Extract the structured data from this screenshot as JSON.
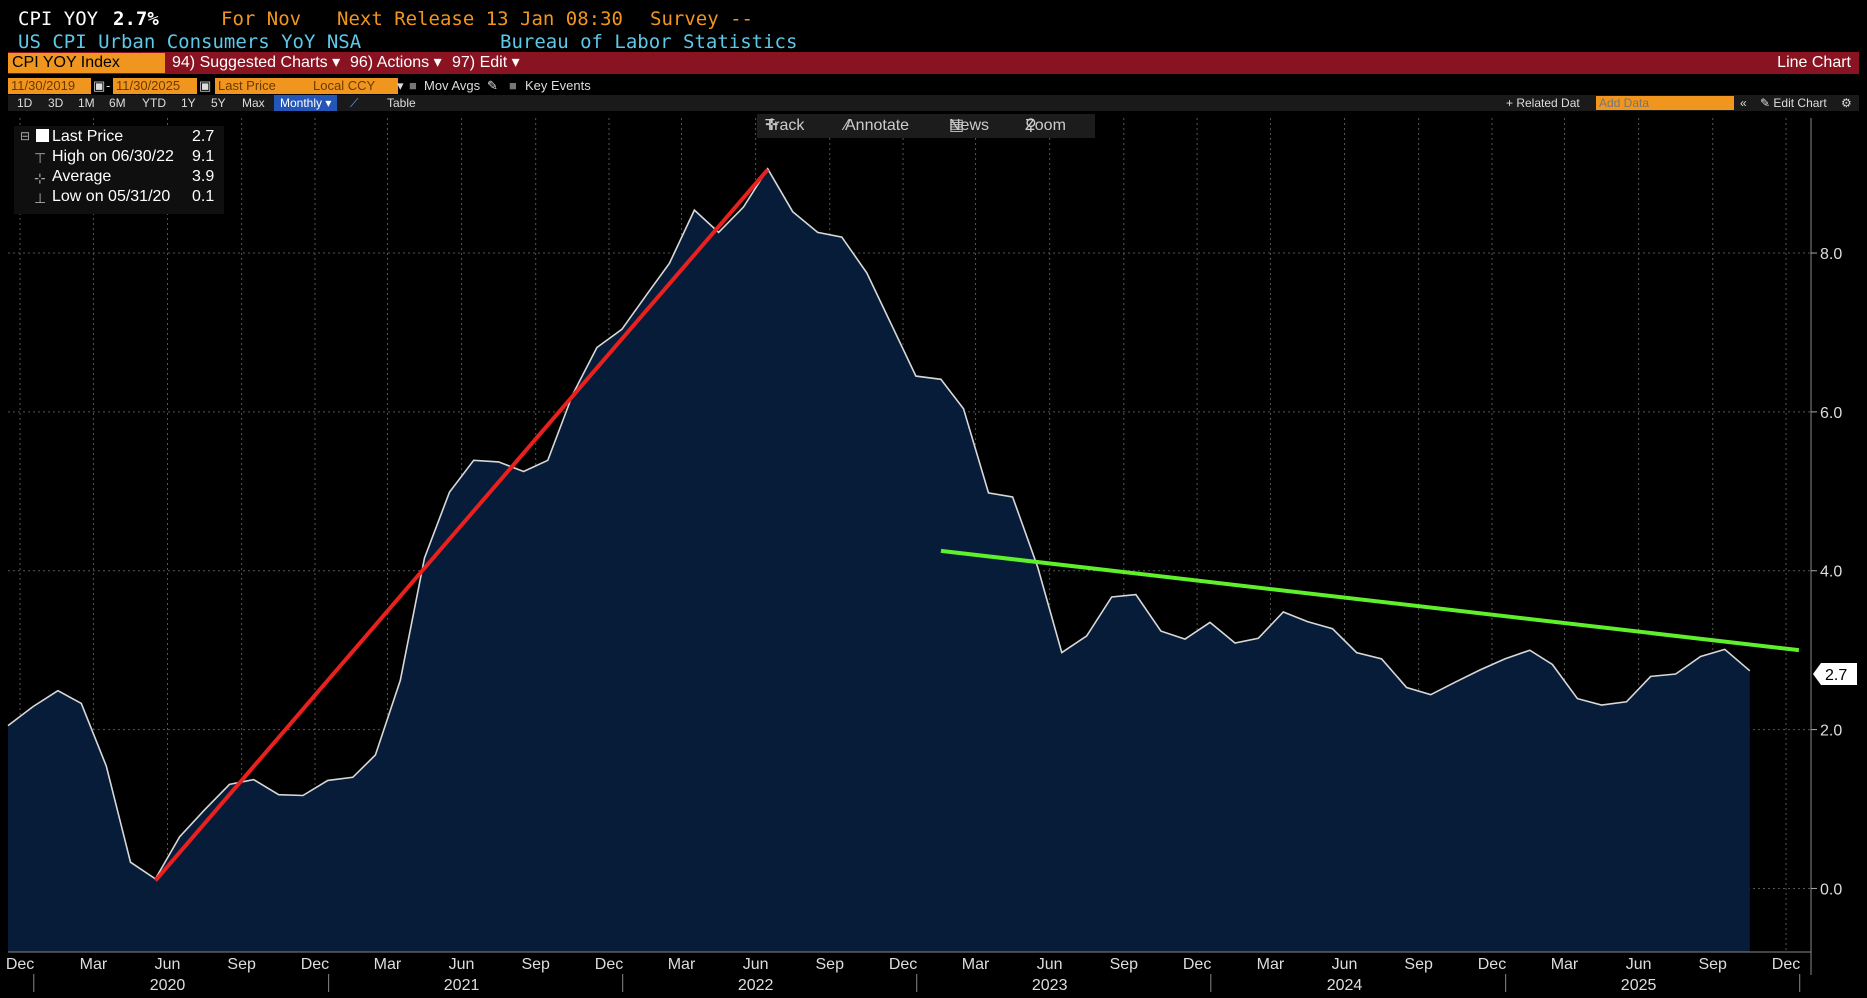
{
  "header": {
    "ticker": "CPI YOY",
    "last_value": "2.7%",
    "for_label": "For Nov",
    "next_release": "Next Release 13 Jan 08:30",
    "survey": "Survey --",
    "description": "US CPI Urban Consumers YoY NSA",
    "source": "Bureau of Labor Statistics"
  },
  "menu": {
    "security": "CPI YOY Index",
    "suggested": "94) Suggested Charts",
    "actions": "96) Actions",
    "edit": "97) Edit",
    "chart_type": "Line Chart"
  },
  "controls": {
    "start_date": "11/30/2019",
    "end_date": "11/30/2025",
    "dash": "-",
    "field": "Last Price",
    "currency": "Local CCY",
    "mov_avgs": "Mov Avgs",
    "key_events": "Key Events"
  },
  "periods": {
    "items": [
      "1D",
      "3D",
      "1M",
      "6M",
      "YTD",
      "1Y",
      "5Y",
      "Max"
    ],
    "frequency": "Monthly",
    "table": "Table",
    "related": "+ Related Dat",
    "add_data_placeholder": "Add Data",
    "edit_chart": "Edit Chart"
  },
  "toolbar": {
    "track": "Track",
    "annotate": "Annotate",
    "news": "News",
    "zoom": "Zoom"
  },
  "legend": {
    "rows": [
      {
        "label": "Last Price",
        "value": "2.7"
      },
      {
        "label": "High on 06/30/22",
        "value": "9.1"
      },
      {
        "label": "Average",
        "value": "3.9"
      },
      {
        "label": "Low on 05/31/20",
        "value": "0.1"
      }
    ]
  },
  "colors": {
    "area_fill": "#071c38",
    "line": "#d8d8d8",
    "trend_up": "#e8201e",
    "trend_down": "#5ef02a",
    "accent_orange": "#f0961e",
    "menu_bar": "#8a1322"
  },
  "chart_data": {
    "type": "area",
    "series": [
      {
        "values": [
          2.05,
          2.29,
          2.49,
          2.33,
          1.54,
          0.33,
          0.12,
          0.65,
          0.99,
          1.31,
          1.37,
          1.18,
          1.17,
          1.36,
          1.4,
          1.68,
          2.62,
          4.16,
          4.99,
          5.39,
          5.37,
          5.25,
          5.39,
          6.22,
          6.81,
          7.04,
          7.48,
          7.87,
          8.54,
          8.26,
          8.58,
          9.06,
          8.52,
          8.26,
          8.2,
          7.75,
          7.11,
          6.45,
          6.41,
          6.04,
          4.98,
          4.93,
          4.05,
          2.97,
          3.18,
          3.67,
          3.7,
          3.24,
          3.14,
          3.35,
          3.09,
          3.15,
          3.48,
          3.36,
          3.27,
          2.97,
          2.89,
          2.53,
          2.44,
          2.6,
          2.75,
          2.89,
          3.0,
          2.82,
          2.39,
          2.31,
          2.35,
          2.67,
          2.7,
          2.92,
          3.01,
          2.74
        ]
      }
    ],
    "last_value_label": "2.7",
    "x_start": "2019-11-30",
    "x_end": "2025-11-30",
    "x_month_ticks": [
      "Dec",
      "Mar",
      "Jun",
      "Sep",
      "Dec",
      "Mar",
      "Jun",
      "Sep",
      "Dec",
      "Mar",
      "Jun",
      "Sep",
      "Dec",
      "Mar",
      "Jun",
      "Sep",
      "Dec",
      "Mar",
      "Jun",
      "Sep",
      "Dec",
      "Mar",
      "Jun",
      "Sep",
      "Dec"
    ],
    "x_year_labels": [
      "2020",
      "2021",
      "2022",
      "2023",
      "2024",
      "2025"
    ],
    "y_ticks": [
      "0.0",
      "2.0",
      "4.0",
      "6.0",
      "8.0"
    ],
    "ylim": [
      -0.8,
      9.7
    ],
    "grid": true,
    "trendlines": [
      {
        "color": "red",
        "from": {
          "x": "2020-05-31",
          "y": 0.1
        },
        "to": {
          "x": "2022-06-30",
          "y": 9.05
        }
      },
      {
        "color": "green",
        "from": {
          "x": "2023-01-31",
          "y": 4.25
        },
        "to": {
          "x": "2025-12-31",
          "y": 3.0
        }
      }
    ]
  }
}
